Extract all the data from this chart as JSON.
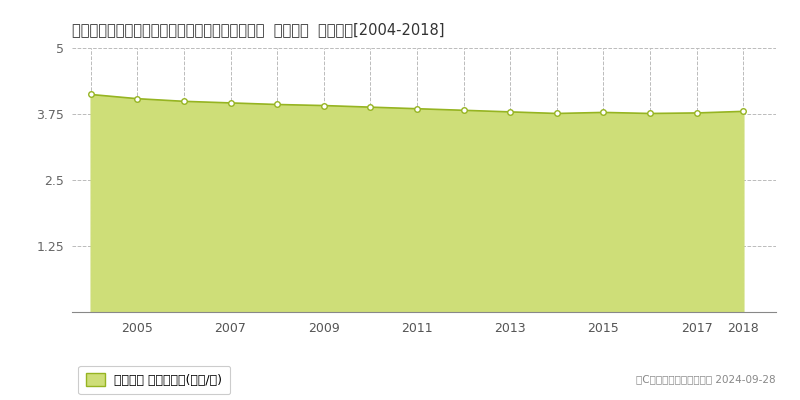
{
  "title": "茨城県那珂郡東海村大字豊岡字西の妻４６０番２  基準地価  地価推移[2004-2018]",
  "years": [
    2004,
    2005,
    2006,
    2007,
    2008,
    2009,
    2010,
    2011,
    2012,
    2013,
    2014,
    2015,
    2016,
    2017,
    2018
  ],
  "values": [
    4.12,
    4.04,
    3.99,
    3.96,
    3.93,
    3.91,
    3.88,
    3.85,
    3.82,
    3.79,
    3.76,
    3.78,
    3.76,
    3.77,
    3.8
  ],
  "ylim": [
    0,
    5
  ],
  "yticks": [
    0,
    1.25,
    2.5,
    3.75,
    5
  ],
  "xtick_labels": [
    "2005",
    "2007",
    "2009",
    "2011",
    "2013",
    "2015",
    "2017",
    "2018"
  ],
  "xtick_years": [
    2005,
    2007,
    2009,
    2011,
    2013,
    2015,
    2017,
    2018
  ],
  "line_color": "#96b422",
  "fill_color": "#cede78",
  "marker_face_color": "#ffffff",
  "marker_edge_color": "#96b422",
  "grid_color": "#bbbbbb",
  "bg_color": "#ffffff",
  "legend_label": "基準地価 平均坪単価(万円/坪)",
  "copyright_text": "（C）土地価格ドットコム 2024-09-28",
  "title_fontsize": 10.5,
  "axis_fontsize": 9,
  "legend_fontsize": 9
}
